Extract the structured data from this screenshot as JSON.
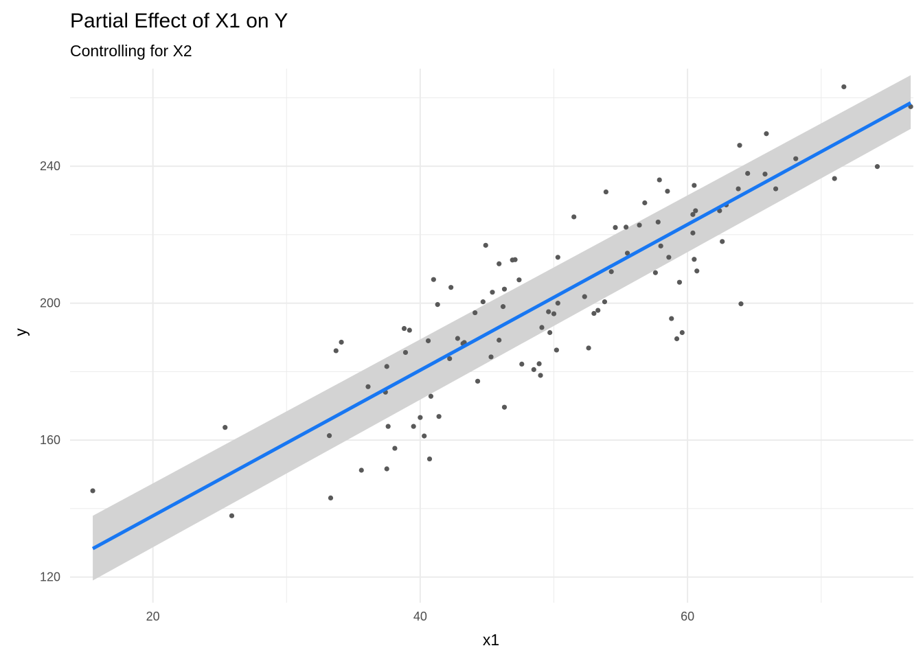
{
  "chart_data": {
    "type": "scatter",
    "title": "Partial Effect of X1 on Y",
    "subtitle": "Controlling for X2",
    "xlabel": "x1",
    "ylabel": "y",
    "xlim": [
      13.8,
      76.9
    ],
    "ylim": [
      112.5,
      268.5
    ],
    "x_ticks": [
      20,
      40,
      60
    ],
    "x_tick_labels": [
      "20",
      "40",
      "60"
    ],
    "x_minor_ticks": [
      30,
      50,
      70
    ],
    "y_ticks": [
      120,
      160,
      200,
      240
    ],
    "y_tick_labels": [
      "120",
      "160",
      "200",
      "240"
    ],
    "y_minor_ticks": [
      140,
      180,
      220,
      260
    ],
    "grid": true,
    "legend": "none",
    "colors": {
      "points": "#595959",
      "line": "#1877f2",
      "ribbon": "#d3d3d3",
      "grid": "#ebebeb"
    },
    "points": [
      [
        15.5,
        145.2
      ],
      [
        25.4,
        163.7
      ],
      [
        25.9,
        137.9
      ],
      [
        33.2,
        161.3
      ],
      [
        33.3,
        143.1
      ],
      [
        33.7,
        186.1
      ],
      [
        34.1,
        188.6
      ],
      [
        35.6,
        151.2
      ],
      [
        36.1,
        175.6
      ],
      [
        37.4,
        174.0
      ],
      [
        37.5,
        181.5
      ],
      [
        37.5,
        151.6
      ],
      [
        37.6,
        164.0
      ],
      [
        38.1,
        157.6
      ],
      [
        38.8,
        192.6
      ],
      [
        38.9,
        185.6
      ],
      [
        39.2,
        192.1
      ],
      [
        39.5,
        164.0
      ],
      [
        40.0,
        166.6
      ],
      [
        40.3,
        161.2
      ],
      [
        40.6,
        189.0
      ],
      [
        40.7,
        154.5
      ],
      [
        40.8,
        172.8
      ],
      [
        41.0,
        206.9
      ],
      [
        41.3,
        199.6
      ],
      [
        41.4,
        166.9
      ],
      [
        42.2,
        183.8
      ],
      [
        42.3,
        204.6
      ],
      [
        42.8,
        189.7
      ],
      [
        43.2,
        188.2
      ],
      [
        43.3,
        188.5
      ],
      [
        44.1,
        197.2
      ],
      [
        44.3,
        177.2
      ],
      [
        44.7,
        200.4
      ],
      [
        44.9,
        216.9
      ],
      [
        45.3,
        184.3
      ],
      [
        45.4,
        203.2
      ],
      [
        45.9,
        189.2
      ],
      [
        45.9,
        211.5
      ],
      [
        46.2,
        199.0
      ],
      [
        46.3,
        204.1
      ],
      [
        46.3,
        169.6
      ],
      [
        46.9,
        212.6
      ],
      [
        47.1,
        212.7
      ],
      [
        47.4,
        206.8
      ],
      [
        47.6,
        182.2
      ],
      [
        48.5,
        180.6
      ],
      [
        48.9,
        182.3
      ],
      [
        49.0,
        178.9
      ],
      [
        49.1,
        192.9
      ],
      [
        49.6,
        197.5
      ],
      [
        49.7,
        191.4
      ],
      [
        50.0,
        196.9
      ],
      [
        50.2,
        186.3
      ],
      [
        50.3,
        200.0
      ],
      [
        50.3,
        213.4
      ],
      [
        51.5,
        225.2
      ],
      [
        52.3,
        201.9
      ],
      [
        52.6,
        186.9
      ],
      [
        53.0,
        197.0
      ],
      [
        53.3,
        197.9
      ],
      [
        53.8,
        200.4
      ],
      [
        53.9,
        232.5
      ],
      [
        54.3,
        209.2
      ],
      [
        54.6,
        222.1
      ],
      [
        55.4,
        222.2
      ],
      [
        55.5,
        214.6
      ],
      [
        56.4,
        222.8
      ],
      [
        56.8,
        229.3
      ],
      [
        57.6,
        208.9
      ],
      [
        57.8,
        223.7
      ],
      [
        57.9,
        236.0
      ],
      [
        58.0,
        216.7
      ],
      [
        58.5,
        232.7
      ],
      [
        58.6,
        213.4
      ],
      [
        58.8,
        195.5
      ],
      [
        59.2,
        189.6
      ],
      [
        59.4,
        206.1
      ],
      [
        59.6,
        191.4
      ],
      [
        60.4,
        225.9
      ],
      [
        60.4,
        220.5
      ],
      [
        60.5,
        212.8
      ],
      [
        60.5,
        234.4
      ],
      [
        60.6,
        227.0
      ],
      [
        60.7,
        209.4
      ],
      [
        62.4,
        227.0
      ],
      [
        62.6,
        218.0
      ],
      [
        62.9,
        228.7
      ],
      [
        63.8,
        233.4
      ],
      [
        63.9,
        246.1
      ],
      [
        64.0,
        199.8
      ],
      [
        64.5,
        237.9
      ],
      [
        65.8,
        237.7
      ],
      [
        65.9,
        249.5
      ],
      [
        66.6,
        233.4
      ],
      [
        68.1,
        242.2
      ],
      [
        71.0,
        236.4
      ],
      [
        71.7,
        263.2
      ],
      [
        74.2,
        239.9
      ],
      [
        76.7,
        257.4
      ]
    ],
    "fit": {
      "x": [
        15.5,
        76.7
      ],
      "y": [
        128.3,
        258.5
      ],
      "ribbon_lower": [
        119.0,
        250.9
      ],
      "ribbon_upper": [
        137.9,
        266.6
      ]
    }
  }
}
